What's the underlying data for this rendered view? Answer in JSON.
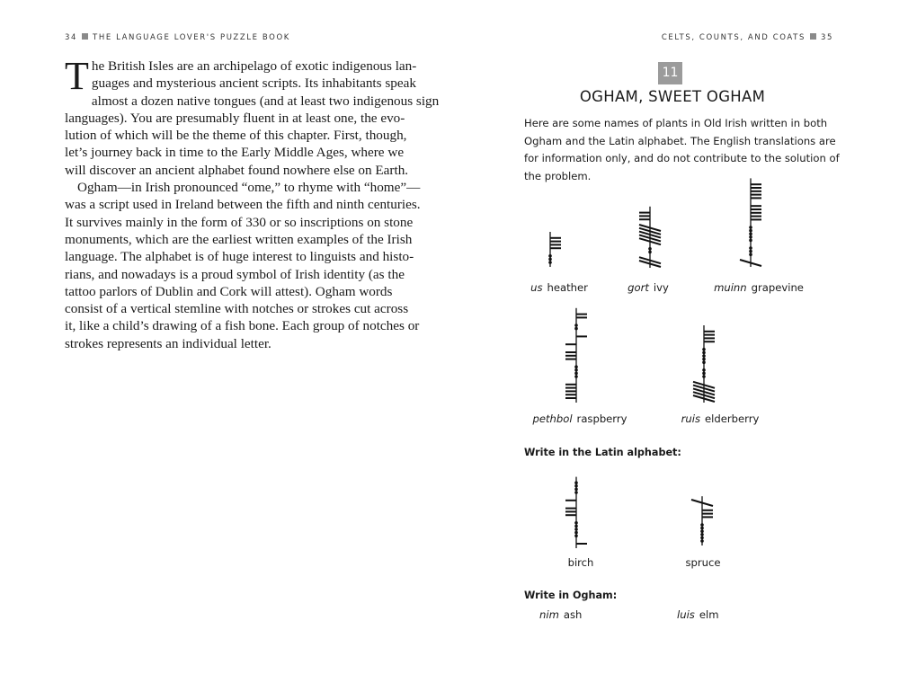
{
  "left_page": {
    "running_head": {
      "page_number": "34",
      "title": "THE LANGUAGE LOVER'S PUZZLE BOOK"
    },
    "drop_cap": "T",
    "lines": [
      "he British Isles are an archipelago of exotic indigenous lan-",
      "guages and mysterious ancient scripts. Its inhabitants speak",
      "almost a dozen native tongues (and at least two indigenous sign",
      "languages). You are presumably fluent in at least one, the evo-",
      "lution of which will be the theme of this chapter. First, though,",
      "let’s journey back in time to the Early Middle Ages, where we",
      "will discover an ancient alphabet found nowhere else on Earth.",
      "Ogham—in Irish pronounced “ome,” to rhyme with “home”—",
      "was a script used in Ireland between the fifth and ninth centuries.",
      "It survives mainly in the form of 330 or so inscriptions on stone",
      "monuments, which are the earliest written examples of the Irish",
      "language. The alphabet is of huge interest to linguists and histo-",
      "rians, and nowadays is a proud symbol of Irish identity (as the",
      "tattoo parlors of Dublin and Cork will attest). Ogham words",
      "consist of a vertical stemline with notches or strokes cut across",
      "it, like a child’s drawing of a fish bone. Each group of notches or",
      "strokes represents an individual letter."
    ]
  },
  "right_page": {
    "running_head": {
      "title": "CELTS, COUNTS, AND COATS",
      "page_number": "35"
    },
    "puzzle_number": "11",
    "puzzle_title": "OGHAM, SWEET OGHAM",
    "intro_lines": [
      "Here are some names of plants in Old Irish written in both",
      "Ogham and the Latin alphabet. The English translations are",
      "for information only, and do not contribute to the solution of",
      "the problem."
    ],
    "examples": [
      {
        "irish": "us",
        "english": "heather"
      },
      {
        "irish": "gort",
        "english": "ivy"
      },
      {
        "irish": "muinn",
        "english": "grapevine"
      },
      {
        "irish": "pethbol",
        "english": "raspberry"
      },
      {
        "irish": "ruis",
        "english": "elderberry"
      }
    ],
    "latin_heading": "Write in the Latin alphabet:",
    "latin_tasks": [
      {
        "english": "birch"
      },
      {
        "english": "spruce"
      }
    ],
    "ogham_heading": "Write in Ogham:",
    "ogham_tasks": [
      {
        "irish": "nim",
        "english": "ash"
      },
      {
        "irish": "luis",
        "english": "elm"
      }
    ],
    "badge_color": "#9b9b9b"
  }
}
